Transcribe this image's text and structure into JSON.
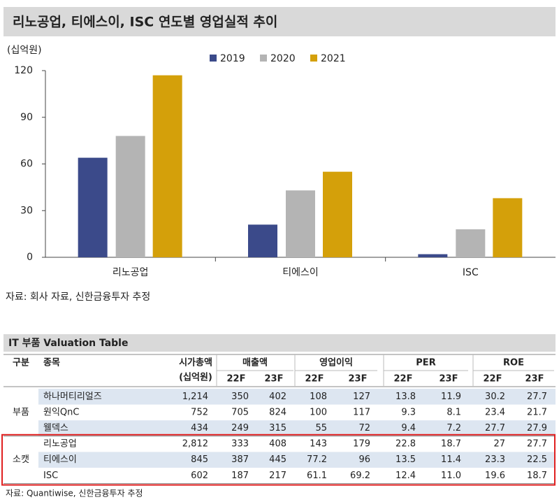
{
  "chart_data": {
    "type": "bar",
    "title": "리노공업, 티에스이, ISC 연도별 영업실적 추이",
    "y_unit": "(십억원)",
    "categories": [
      "리노공업",
      "티에스이",
      "ISC"
    ],
    "series": [
      {
        "name": "2019",
        "color": "#3b4a8a",
        "values": [
          64,
          21,
          2
        ]
      },
      {
        "name": "2020",
        "color": "#b4b4b4",
        "values": [
          78,
          43,
          18
        ]
      },
      {
        "name": "2021",
        "color": "#d4a00a",
        "values": [
          117,
          55,
          38
        ]
      }
    ],
    "ylim": [
      0,
      120
    ],
    "yticks": [
      0,
      30,
      60,
      90,
      120
    ],
    "grid": false,
    "legend": "top"
  },
  "chart_source": "자료: 회사 자료, 신한금융투자 추정",
  "table": {
    "title": "IT 부품 Valuation Table",
    "header": {
      "group": "구분",
      "name": "종목",
      "cap": [
        "시가총액",
        "(십억원)"
      ],
      "metrics": [
        {
          "name": "매출액",
          "years": [
            "22F",
            "23F"
          ]
        },
        {
          "name": "영업이익",
          "years": [
            "22F",
            "23F"
          ]
        },
        {
          "name": "PER",
          "years": [
            "22F",
            "23F"
          ]
        },
        {
          "name": "ROE",
          "years": [
            "22F",
            "23F"
          ]
        }
      ]
    },
    "groups": [
      {
        "name": "부품",
        "rows": [
          [
            "하나머티리얼즈",
            "1,214",
            "350",
            "402",
            "108",
            "127",
            "13.8",
            "11.9",
            "30.2",
            "27.7"
          ],
          [
            "원익QnC",
            "752",
            "705",
            "824",
            "100",
            "117",
            "9.3",
            "8.1",
            "23.4",
            "21.7"
          ],
          [
            "웰덱스",
            "434",
            "249",
            "315",
            "55",
            "72",
            "9.4",
            "7.2",
            "27.7",
            "27.9"
          ]
        ]
      },
      {
        "name": "소캣",
        "rows": [
          [
            "리노공업",
            "2,812",
            "333",
            "408",
            "143",
            "179",
            "22.8",
            "18.7",
            "27",
            "27.7"
          ],
          [
            "티에스이",
            "845",
            "387",
            "445",
            "77.2",
            "96",
            "13.5",
            "11.4",
            "23.3",
            "22.5"
          ],
          [
            "ISC",
            "602",
            "187",
            "217",
            "61.1",
            "69.2",
            "12.4",
            "11.0",
            "19.6",
            "18.7"
          ]
        ]
      }
    ],
    "source": "자료: Quantiwise, 신한금융투자 추정"
  }
}
